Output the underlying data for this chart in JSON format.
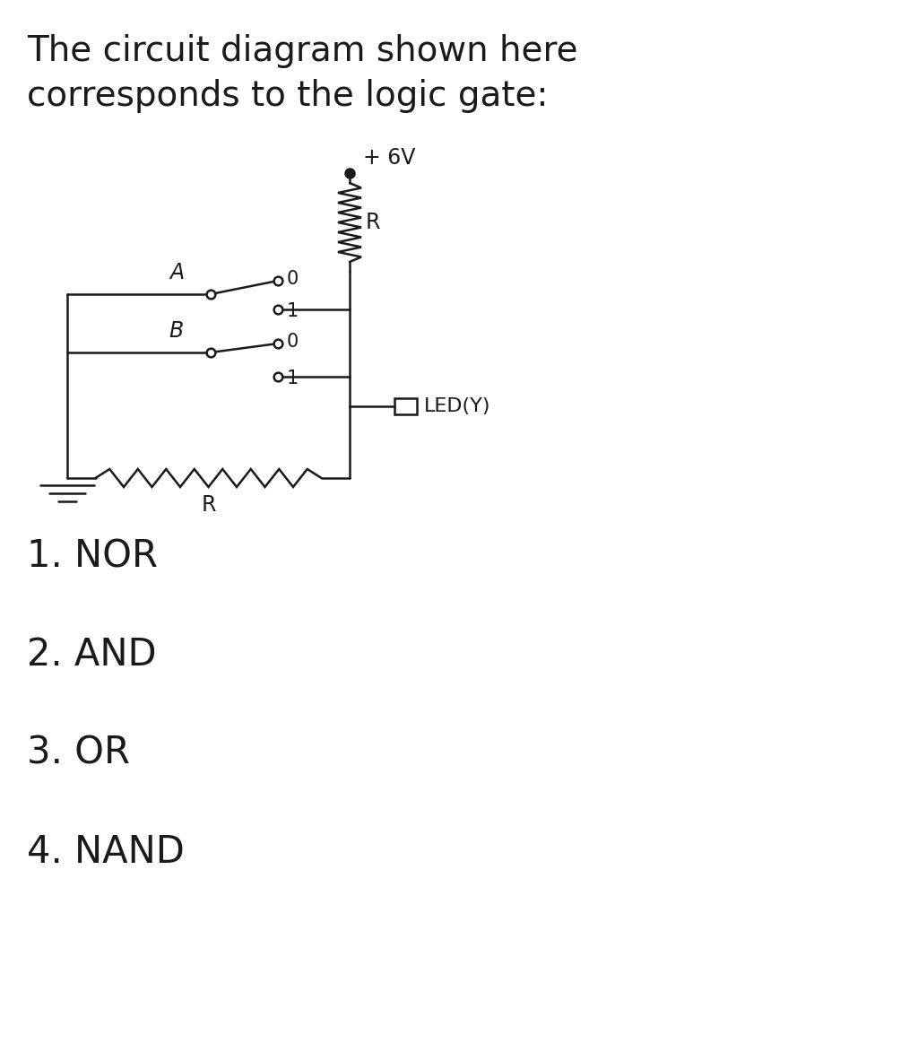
{
  "title_line1": "The circuit diagram shown here",
  "title_line2": "corresponds to the logic gate:",
  "options": [
    "1. NOR",
    "2. AND",
    "3. OR",
    "4. NAND"
  ],
  "bg_color": "#ffffff",
  "fg_color": "#1a1a1a",
  "vcc_label": "+ 6V",
  "r_top_label": "R",
  "r_bot_label": "R",
  "led_label": "LED(Y)",
  "switch_A_label": "A",
  "switch_B_label": "B"
}
